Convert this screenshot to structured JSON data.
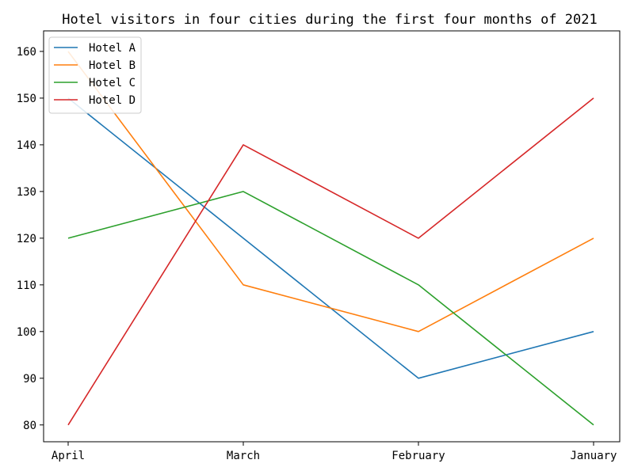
{
  "chart_data": {
    "type": "line",
    "title": "Hotel visitors in four cities during the first four months of 2021",
    "xlabel": "",
    "ylabel": "",
    "categories": [
      "April",
      "March",
      "February",
      "January"
    ],
    "ylim": [
      76.4,
      164.4
    ],
    "yticks": [
      80,
      90,
      100,
      110,
      120,
      130,
      140,
      150,
      160
    ],
    "grid": false,
    "legend_position": "top-left",
    "series": [
      {
        "name": "Hotel A",
        "color": "#1f77b4",
        "values": [
          150,
          120,
          90,
          100
        ]
      },
      {
        "name": "Hotel B",
        "color": "#ff7f0e",
        "values": [
          160,
          110,
          100,
          120
        ]
      },
      {
        "name": "Hotel C",
        "color": "#2ca02c",
        "values": [
          120,
          130,
          110,
          80
        ]
      },
      {
        "name": "Hotel D",
        "color": "#d62728",
        "values": [
          80,
          140,
          120,
          150
        ]
      }
    ]
  }
}
